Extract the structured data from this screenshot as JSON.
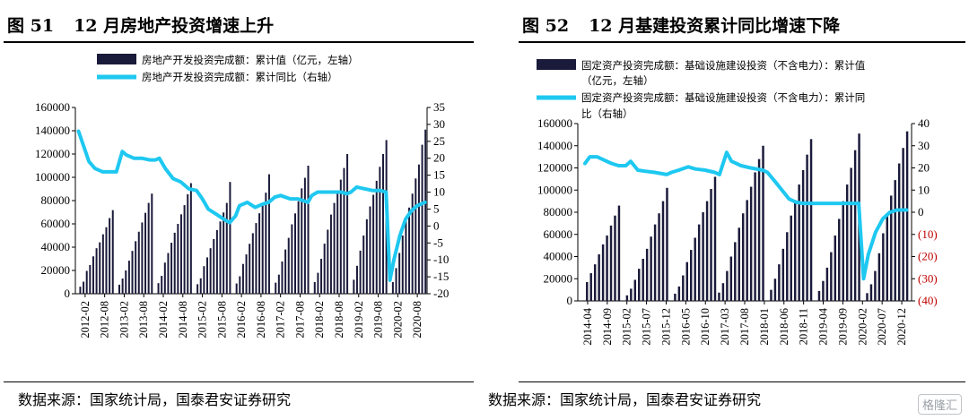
{
  "charts": [
    {
      "figure_num": "图 51",
      "title": "12 月房地产投资增速上升",
      "source": "数据来源：国家统计局，国泰君安证券研究",
      "legend_bar": "房地产开发投资完成额：累计值（亿元，左轴）",
      "legend_line": "房地产开发投资完成额：累计同比（右轴）"
    },
    {
      "figure_num": "图 52",
      "title": "12 月基建投资累计同比增速下降",
      "source": "数据来源：国家统计局，国泰君安证券研究",
      "legend_bar_l1": "固定资产投资完成额：基础设施建设投资（不含电力）：累计值",
      "legend_bar_l2": "（亿元，左轴）",
      "legend_line_l1": "固定资产投资完成额：基础设施建设投资（不含电力）：累计同",
      "legend_line_l2": "比（右轴）"
    }
  ],
  "watermark": "格隆汇",
  "colors": {
    "bar": "#1a1a3a",
    "line": "#1ec8f0",
    "negative_tick": "#c00000"
  },
  "chart_data": [
    {
      "type": "bar+line",
      "series": [
        {
          "name": "房地产开发投资完成额：累计值（亿元，左轴）",
          "kind": "bar",
          "axis": "left",
          "years": [
            2012,
            2013,
            2014,
            2015,
            2016,
            2017,
            2018,
            2019,
            2020
          ],
          "values_by_year": [
            [
              6060,
              10350,
              19620,
              24680,
              32110,
              39090,
              44130,
              51050,
              57130,
              64980,
              71800
            ],
            [
              7750,
              13080,
              20030,
              28400,
              36830,
              45100,
              53270,
              61220,
              69480,
              78010,
              86000
            ],
            [
              9100,
              15340,
              26740,
              35000,
              43800,
              52400,
              60000,
              68200,
              76100,
              85500,
              95000
            ],
            [
              8170,
              13240,
              23670,
              31200,
              39100,
              47000,
              54700,
              62100,
              69800,
              78000,
              96000
            ],
            [
              8800,
              14970,
              25600,
              33800,
              42900,
              52000,
              60700,
              69100,
              77600,
              86800,
              102600
            ],
            [
              9500,
              16400,
              27700,
              38000,
              48000,
              59600,
              69000,
              79400,
              90500,
              99600,
              110000
            ],
            [
              10000,
              18000,
              30000,
              43000,
              55000,
              68000,
              78000,
              88000,
              98000,
              108000,
              120000
            ],
            [
              12000,
              24000,
              37000,
              50000,
              64000,
              75000,
              85000,
              97000,
              109000,
              120000,
              132000
            ],
            [
              10000,
              22000,
              35000,
              50000,
              63000,
              74000,
              86000,
              99000,
              111000,
              128000,
              141000
            ]
          ]
        },
        {
          "name": "房地产开发投资完成额：累计同比（右轴）",
          "kind": "line",
          "axis": "right",
          "points": [
            [
              2012.08,
              28
            ],
            [
              2012.2,
              24
            ],
            [
              2012.35,
              19
            ],
            [
              2012.5,
              17
            ],
            [
              2012.7,
              16
            ],
            [
              2012.9,
              16
            ],
            [
              2013.05,
              16
            ],
            [
              2013.1,
              18
            ],
            [
              2013.2,
              22
            ],
            [
              2013.3,
              21
            ],
            [
              2013.5,
              20
            ],
            [
              2013.7,
              20
            ],
            [
              2013.9,
              19.5
            ],
            [
              2014.05,
              19.5
            ],
            [
              2014.15,
              20
            ],
            [
              2014.3,
              17
            ],
            [
              2014.5,
              14
            ],
            [
              2014.7,
              13
            ],
            [
              2014.9,
              11
            ],
            [
              2015.1,
              10.5
            ],
            [
              2015.25,
              8
            ],
            [
              2015.4,
              5
            ],
            [
              2015.6,
              3.5
            ],
            [
              2015.8,
              2
            ],
            [
              2015.95,
              1
            ],
            [
              2016.1,
              3
            ],
            [
              2016.2,
              6
            ],
            [
              2016.4,
              7
            ],
            [
              2016.6,
              5.5
            ],
            [
              2016.8,
              6.5
            ],
            [
              2016.95,
              7
            ],
            [
              2017.1,
              8.5
            ],
            [
              2017.25,
              9
            ],
            [
              2017.5,
              8
            ],
            [
              2017.7,
              8
            ],
            [
              2017.95,
              7
            ],
            [
              2018.05,
              9
            ],
            [
              2018.2,
              10
            ],
            [
              2018.4,
              10
            ],
            [
              2018.6,
              10
            ],
            [
              2018.8,
              10
            ],
            [
              2018.95,
              9.5
            ],
            [
              2019.05,
              10
            ],
            [
              2019.2,
              11.5
            ],
            [
              2019.4,
              11
            ],
            [
              2019.6,
              10.5
            ],
            [
              2019.8,
              10.5
            ],
            [
              2019.95,
              10
            ],
            [
              2020.05,
              -16
            ],
            [
              2020.15,
              -10
            ],
            [
              2020.3,
              -3
            ],
            [
              2020.45,
              2
            ],
            [
              2020.6,
              4.5
            ],
            [
              2020.75,
              6
            ],
            [
              2020.95,
              7
            ]
          ]
        }
      ],
      "x_ticks": [
        "2012-02",
        "2012-08",
        "2013-02",
        "2013-08",
        "2014-02",
        "2014-08",
        "2015-02",
        "2015-08",
        "2016-02",
        "2016-08",
        "2017-02",
        "2017-08",
        "2018-02",
        "2018-08",
        "2019-02",
        "2019-08",
        "2020-02",
        "2020-08"
      ],
      "ylim_left": [
        0,
        160000
      ],
      "y_ticks_left": [
        0,
        20000,
        40000,
        60000,
        80000,
        100000,
        120000,
        140000,
        160000
      ],
      "ylim_right": [
        -20,
        35
      ],
      "y_ticks_right": [
        -20,
        -15,
        -10,
        -5,
        0,
        5,
        10,
        15,
        20,
        25,
        30,
        35
      ],
      "x_range": [
        2012.0,
        2021.0
      ]
    },
    {
      "type": "bar+line",
      "series": [
        {
          "name": "固定资产投资完成额：基础设施建设投资（不含电力）：累计值（亿元，左轴）",
          "kind": "bar",
          "axis": "left",
          "years": [
            2014,
            2015,
            2016,
            2017,
            2018,
            2019,
            2020
          ],
          "values_by_year": [
            [
              17000,
              25000,
              33000,
              42000,
              51000,
              59000,
              68000,
              77000,
              86000
            ],
            [
              5000,
              11000,
              19000,
              29000,
              38000,
              47000,
              58000,
              69000,
              79000,
              90000,
              102000
            ],
            [
              6500,
              13000,
              23000,
              35000,
              46000,
              57000,
              69000,
              80000,
              90000,
              101000,
              112000
            ],
            [
              7500,
              16000,
              27000,
              40000,
              53000,
              66000,
              79000,
              91000,
              103000,
              116000,
              128000,
              140000
            ],
            [
              10000,
              20000,
              33000,
              47000,
              62000,
              77000,
              91000,
              105000,
              118000,
              132000,
              146000
            ],
            [
              9000,
              18000,
              30000,
              44000,
              59000,
              74000,
              90000,
              105000,
              120000,
              136000,
              151000
            ],
            [
              7000,
              15000,
              27000,
              43000,
              61000,
              79000,
              95000,
              109000,
              124000,
              138000,
              153000
            ]
          ]
        },
        {
          "name": "固定资产投资完成额：基础设施建设投资（不含电力）：累计同比（右轴）",
          "kind": "line",
          "axis": "right",
          "points": [
            [
              2014.25,
              22
            ],
            [
              2014.35,
              25
            ],
            [
              2014.5,
              25
            ],
            [
              2014.65,
              23.5
            ],
            [
              2014.8,
              22
            ],
            [
              2014.95,
              21
            ],
            [
              2015.1,
              21
            ],
            [
              2015.2,
              23
            ],
            [
              2015.35,
              19
            ],
            [
              2015.5,
              18.5
            ],
            [
              2015.7,
              18
            ],
            [
              2015.95,
              17
            ],
            [
              2016.05,
              18
            ],
            [
              2016.2,
              19
            ],
            [
              2016.4,
              20.5
            ],
            [
              2016.55,
              19.5
            ],
            [
              2016.75,
              19
            ],
            [
              2016.95,
              18
            ],
            [
              2017.05,
              17
            ],
            [
              2017.2,
              27
            ],
            [
              2017.3,
              23
            ],
            [
              2017.5,
              21
            ],
            [
              2017.7,
              20
            ],
            [
              2017.95,
              19
            ],
            [
              2018.05,
              18
            ],
            [
              2018.2,
              14
            ],
            [
              2018.35,
              10
            ],
            [
              2018.5,
              6
            ],
            [
              2018.65,
              4.5
            ],
            [
              2018.8,
              4
            ],
            [
              2018.95,
              4
            ],
            [
              2019.1,
              4
            ],
            [
              2019.3,
              4
            ],
            [
              2019.5,
              4
            ],
            [
              2019.7,
              4
            ],
            [
              2019.95,
              4
            ],
            [
              2020.05,
              -30
            ],
            [
              2020.15,
              -19
            ],
            [
              2020.3,
              -9
            ],
            [
              2020.45,
              -3
            ],
            [
              2020.6,
              0
            ],
            [
              2020.75,
              1
            ],
            [
              2020.95,
              1
            ]
          ]
        }
      ],
      "x_ticks": [
        "2014-04",
        "2014-09",
        "2015-02",
        "2015-07",
        "2015-12",
        "2016-05",
        "2016-10",
        "2017-03",
        "2017-08",
        "2018-01",
        "2018-06",
        "2018-11",
        "2019-04",
        "2019-09",
        "2020-02",
        "2020-07",
        "2020-12"
      ],
      "ylim_left": [
        0,
        160000
      ],
      "y_ticks_left": [
        0,
        20000,
        40000,
        60000,
        80000,
        100000,
        120000,
        140000,
        160000
      ],
      "ylim_right": [
        -40,
        40
      ],
      "y_ticks_right": [
        -40,
        -30,
        -20,
        -10,
        0,
        10,
        20,
        30,
        40
      ],
      "y_ticks_right_labels": [
        "(40)",
        "(30)",
        "(20)",
        "(10)",
        "0",
        "10",
        "20",
        "30",
        "40"
      ],
      "x_range": [
        2014.1,
        2021.05
      ]
    }
  ]
}
